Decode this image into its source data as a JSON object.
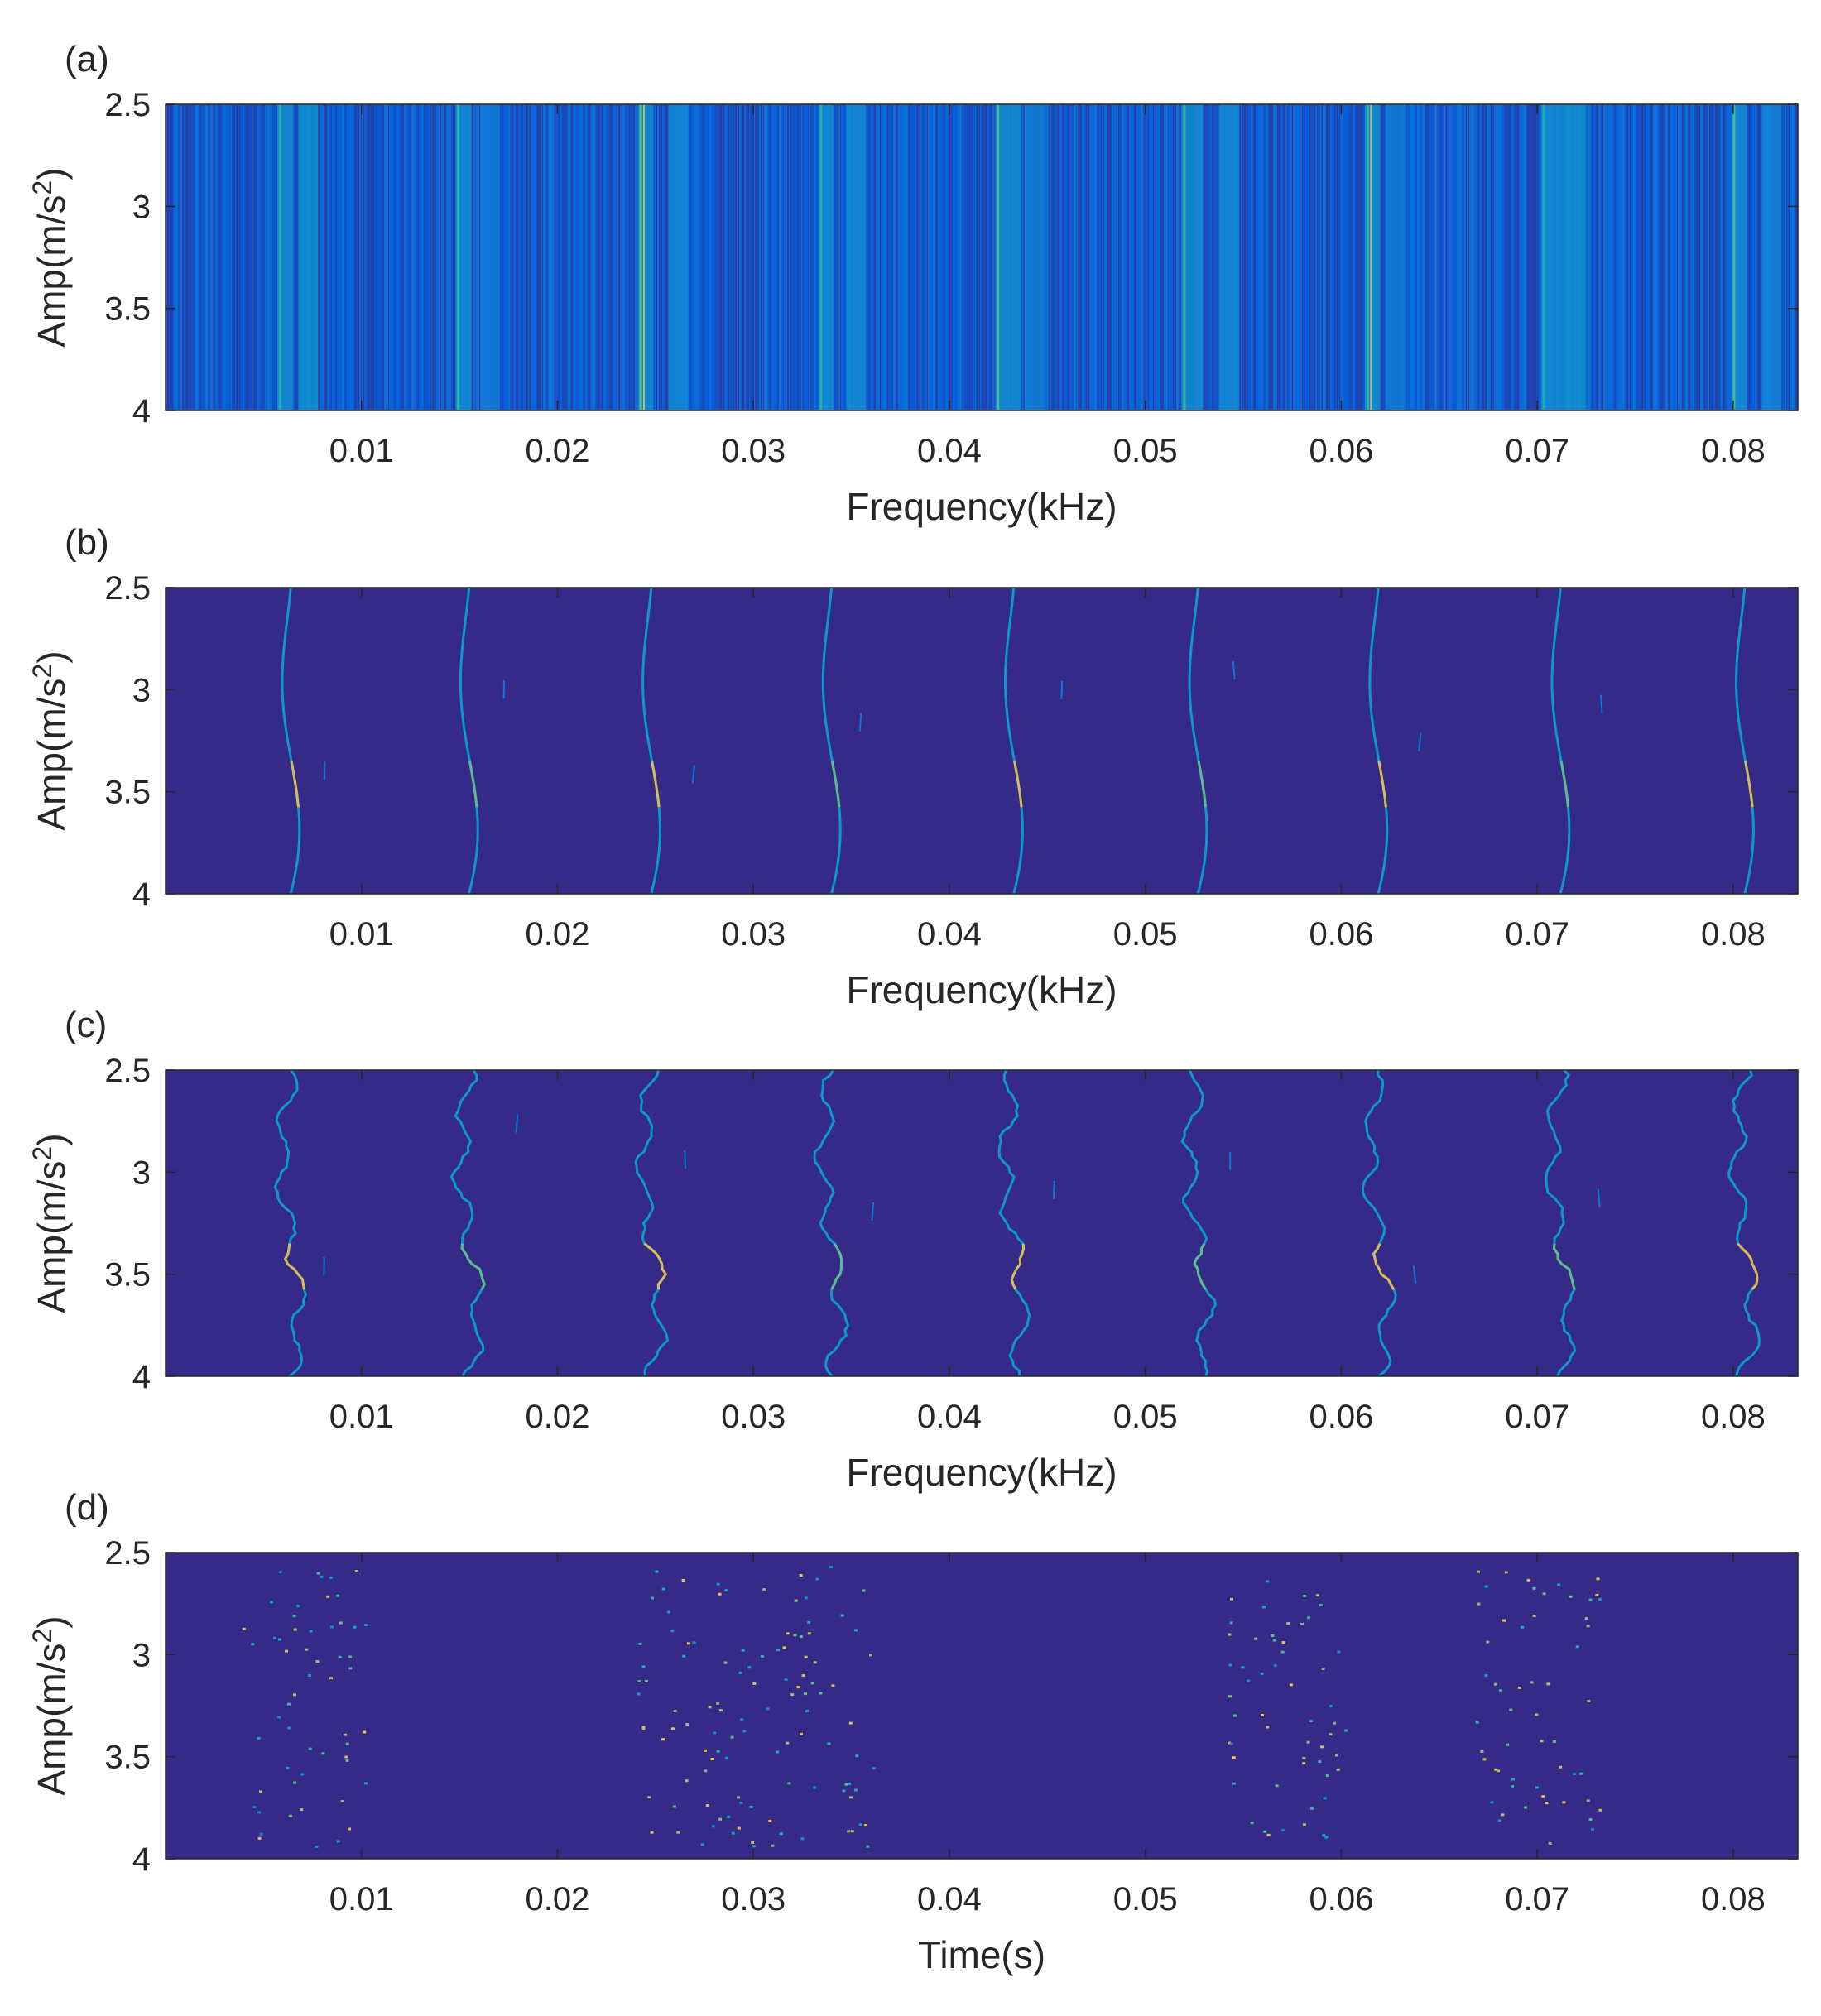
{
  "colors": {
    "background": "#352a87",
    "colormap": [
      "#352a87",
      "#0363e1",
      "#1485d4",
      "#06a7c6",
      "#38b99e",
      "#92bf73",
      "#d9ba56",
      "#fcce2e",
      "#f9fb0e"
    ],
    "axis": "#262626"
  },
  "chart_data": [
    {
      "panel_label": "(a)",
      "type": "heatmap",
      "style": "broadband",
      "xlabel": "Frequency(kHz)",
      "ylabel": "Amp(m/s^2)",
      "ylabel_base": "Amp(m/s",
      "ylabel_sup": "2",
      "ylabel_end": ")",
      "xlim": [
        0.0,
        0.0833
      ],
      "ylim": [
        2.5,
        4
      ],
      "y_reversed": true,
      "xticks": [
        0.01,
        0.02,
        0.03,
        0.04,
        0.05,
        0.06,
        0.07,
        0.08
      ],
      "xtick_labels": [
        "0.01",
        "0.02",
        "0.03",
        "0.04",
        "0.05",
        "0.06",
        "0.07",
        "0.08"
      ],
      "yticks": [
        2.5,
        3,
        3.5,
        4
      ],
      "ytick_labels": [
        "2.5",
        "3",
        "3.5",
        "4"
      ],
      "ridge_centers": [
        0.0061,
        0.0152,
        0.0245,
        0.0337,
        0.043,
        0.0524,
        0.0616,
        0.0709,
        0.0803
      ],
      "peak_intensity": 0.6
    },
    {
      "panel_label": "(b)",
      "type": "heatmap",
      "style": "smooth-ridges",
      "xlabel": "Frequency(kHz)",
      "ylabel": "Amp(m/s^2)",
      "ylabel_base": "Amp(m/s",
      "ylabel_sup": "2",
      "ylabel_end": ")",
      "xlim": [
        0.0,
        0.0833
      ],
      "ylim": [
        2.5,
        4
      ],
      "y_reversed": true,
      "xticks": [
        0.01,
        0.02,
        0.03,
        0.04,
        0.05,
        0.06,
        0.07,
        0.08
      ],
      "xtick_labels": [
        "0.01",
        "0.02",
        "0.03",
        "0.04",
        "0.05",
        "0.06",
        "0.07",
        "0.08"
      ],
      "yticks": [
        2.5,
        3,
        3.5,
        4
      ],
      "ytick_labels": [
        "2.5",
        "3",
        "3.5",
        "4"
      ],
      "ridge_centers": [
        0.0061,
        0.0152,
        0.0245,
        0.0337,
        0.043,
        0.0524,
        0.0616,
        0.0709,
        0.0803
      ],
      "peak_intensity": 0.9
    },
    {
      "panel_label": "(c)",
      "type": "heatmap",
      "style": "wavy-ridges",
      "xlabel": "Frequency(kHz)",
      "ylabel": "Amp(m/s^2)",
      "ylabel_base": "Amp(m/s",
      "ylabel_sup": "2",
      "ylabel_end": ")",
      "xlim": [
        0.0,
        0.0833
      ],
      "ylim": [
        2.5,
        4
      ],
      "y_reversed": true,
      "xticks": [
        0.01,
        0.02,
        0.03,
        0.04,
        0.05,
        0.06,
        0.07,
        0.08
      ],
      "xtick_labels": [
        "0.01",
        "0.02",
        "0.03",
        "0.04",
        "0.05",
        "0.06",
        "0.07",
        "0.08"
      ],
      "yticks": [
        2.5,
        3,
        3.5,
        4
      ],
      "ytick_labels": [
        "2.5",
        "3",
        "3.5",
        "4"
      ],
      "ridge_centers": [
        0.0061,
        0.0152,
        0.0245,
        0.0337,
        0.043,
        0.0524,
        0.0616,
        0.0709,
        0.0803
      ],
      "peak_intensity": 0.95
    },
    {
      "panel_label": "(d)",
      "type": "heatmap",
      "style": "sparse-points",
      "xlabel": "Time(s)",
      "ylabel": "Amp(m/s^2)",
      "ylabel_base": "Amp(m/s",
      "ylabel_sup": "2",
      "ylabel_end": ")",
      "xlim": [
        0.0,
        0.0833
      ],
      "ylim": [
        2.5,
        4
      ],
      "y_reversed": true,
      "xticks": [
        0.01,
        0.02,
        0.03,
        0.04,
        0.05,
        0.06,
        0.07,
        0.08
      ],
      "xtick_labels": [
        "0.01",
        "0.02",
        "0.03",
        "0.04",
        "0.05",
        "0.06",
        "0.07",
        "0.08"
      ],
      "yticks": [
        2.5,
        3,
        3.5,
        4
      ],
      "ytick_labels": [
        "2.5",
        "3",
        "3.5",
        "4"
      ],
      "cluster_centers": [
        0.007,
        0.027,
        0.033,
        0.057,
        0.07
      ],
      "peak_intensity": 0.95
    }
  ]
}
